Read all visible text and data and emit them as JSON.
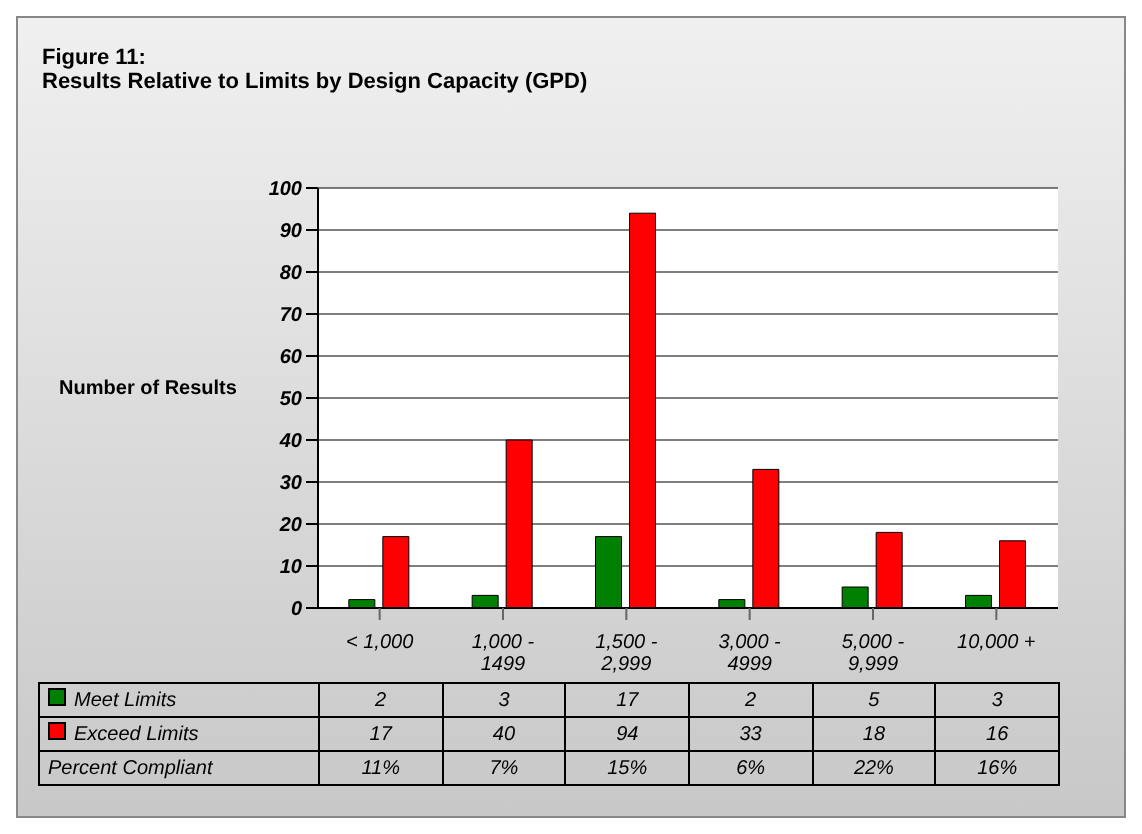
{
  "chart_data": {
    "type": "bar",
    "title": "Figure 11:",
    "subtitle": "Results Relative to Limits by Design Capacity (GPD)",
    "ylabel": "Number of Results",
    "categories": [
      "< 1,000",
      "1,000 - 1499",
      "1,500 - 2,999",
      "3,000 - 4999",
      "5,000 - 9,999",
      "10,000 +"
    ],
    "series": [
      {
        "name": "Meet Limits",
        "color": "#008000",
        "values": [
          2,
          3,
          17,
          2,
          5,
          3
        ]
      },
      {
        "name": "Exceed Limits",
        "color": "#ff0000",
        "values": [
          17,
          40,
          94,
          33,
          18,
          16
        ]
      }
    ],
    "ylim": [
      0,
      100
    ],
    "yticks": [
      0,
      10,
      20,
      30,
      40,
      50,
      60,
      70,
      80,
      90,
      100
    ],
    "grid": "y",
    "legend": "bottom",
    "data_labels": true,
    "annotations": [
      "Percent Compliant",
      "11%",
      "7%",
      "15%",
      "6%",
      "22%",
      "16%"
    ]
  }
}
